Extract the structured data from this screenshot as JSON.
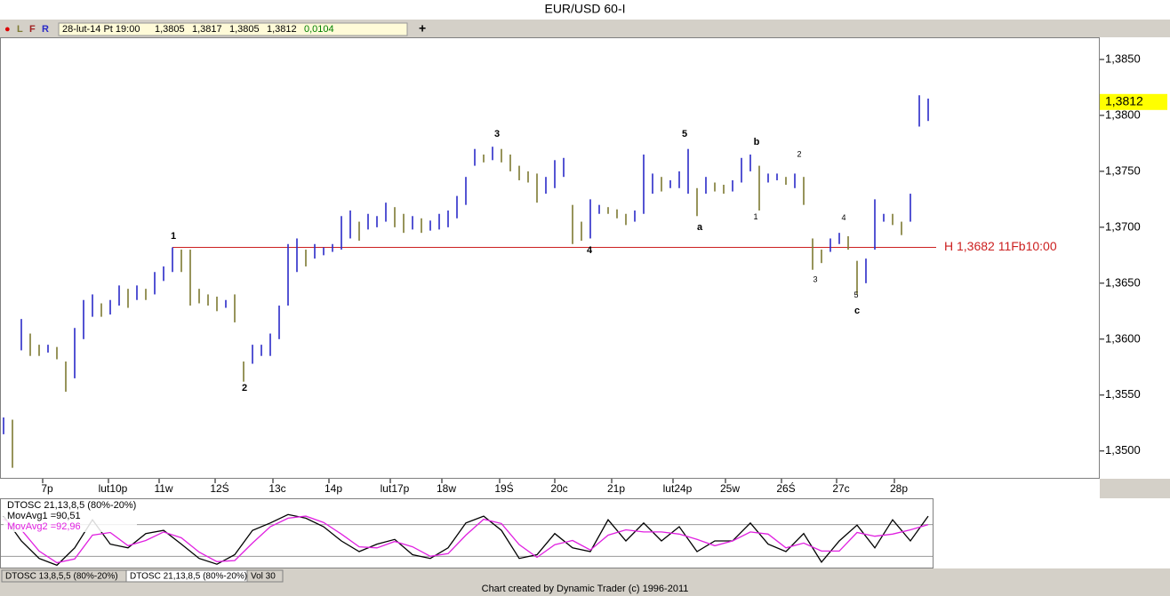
{
  "chart_data": {
    "type": "ohlc",
    "title": "EUR/USD 60-I",
    "toolbar": {
      "markers": [
        "●",
        "L",
        "F",
        "R"
      ],
      "quote": [
        "28-lut-14 Pt 19:00",
        "1,3805",
        "1,3817",
        "1,3805",
        "1,3812",
        "0,0104"
      ]
    },
    "high": [
      1.353,
      1.3528,
      1.3618,
      1.3605,
      1.3595,
      1.3595,
      1.3593,
      1.358,
      1.361,
      1.3635,
      1.364,
      1.3632,
      1.3635,
      1.3648,
      1.3645,
      1.3648,
      1.3645,
      1.366,
      1.3665,
      1.3682,
      1.368,
      1.368,
      1.3645,
      1.364,
      1.3638,
      1.3635,
      1.364,
      1.358,
      1.3595,
      1.3595,
      1.3605,
      1.363,
      1.3685,
      1.369,
      1.368,
      1.3685,
      1.3682,
      1.3685,
      1.371,
      1.3715,
      1.3705,
      1.3712,
      1.371,
      1.3722,
      1.3718,
      1.3712,
      1.371,
      1.3708,
      1.3706,
      1.3712,
      1.3715,
      1.3728,
      1.3745,
      1.377,
      1.3765,
      1.3772,
      1.377,
      1.3765,
      1.3755,
      1.375,
      1.3748,
      1.3745,
      1.376,
      1.3762,
      1.372,
      1.3705,
      1.3725,
      1.372,
      1.3718,
      1.3716,
      1.3712,
      1.3715,
      1.3765,
      1.3748,
      1.3745,
      1.3742,
      1.375,
      1.377,
      1.3735,
      1.3745,
      1.374,
      1.3738,
      1.3742,
      1.3762,
      1.3765,
      1.3755,
      1.3748,
      1.3748,
      1.3745,
      1.3748,
      1.3745,
      1.369,
      1.368,
      1.369,
      1.3695,
      1.3692,
      1.367,
      1.3672,
      1.3725,
      1.3712,
      1.3712,
      1.3705,
      1.373,
      1.3818,
      1.3815
    ],
    "low": [
      1.3515,
      1.3485,
      1.359,
      1.3585,
      1.3585,
      1.3588,
      1.3582,
      1.3553,
      1.3565,
      1.36,
      1.362,
      1.362,
      1.3622,
      1.363,
      1.3628,
      1.3635,
      1.3635,
      1.364,
      1.3652,
      1.366,
      1.366,
      1.363,
      1.3632,
      1.363,
      1.3625,
      1.3628,
      1.3615,
      1.3562,
      1.3578,
      1.3585,
      1.3585,
      1.36,
      1.363,
      1.366,
      1.3665,
      1.3672,
      1.3675,
      1.3678,
      1.368,
      1.369,
      1.3688,
      1.3698,
      1.37,
      1.3705,
      1.37,
      1.3695,
      1.3698,
      1.3695,
      1.3697,
      1.3698,
      1.37,
      1.3708,
      1.372,
      1.3755,
      1.3758,
      1.376,
      1.3758,
      1.375,
      1.3742,
      1.374,
      1.3722,
      1.373,
      1.3735,
      1.3745,
      1.3685,
      1.3688,
      1.369,
      1.3712,
      1.3712,
      1.3708,
      1.3702,
      1.3705,
      1.3712,
      1.373,
      1.3732,
      1.3735,
      1.3735,
      1.373,
      1.371,
      1.373,
      1.3732,
      1.373,
      1.3732,
      1.374,
      1.375,
      1.3715,
      1.374,
      1.3742,
      1.3738,
      1.3735,
      1.372,
      1.3662,
      1.3668,
      1.3678,
      1.3685,
      1.368,
      1.364,
      1.365,
      1.368,
      1.3705,
      1.3702,
      1.3693,
      1.3705,
      1.379,
      1.3795
    ],
    "up_color": "#2a2ac8",
    "down_color": "#7d7a32",
    "xlim": [
      -0.4,
      123.3
    ],
    "xticks": [
      {
        "value": 4.9,
        "label": "7p"
      },
      {
        "value": 12.3,
        "label": "lut10p"
      },
      {
        "value": 18,
        "label": "11w"
      },
      {
        "value": 24.3,
        "label": "12Ś"
      },
      {
        "value": 30.8,
        "label": "13c"
      },
      {
        "value": 37.1,
        "label": "14p"
      },
      {
        "value": 44,
        "label": "lut17p"
      },
      {
        "value": 49.8,
        "label": "18w"
      },
      {
        "value": 56.3,
        "label": "19Ś"
      },
      {
        "value": 62.5,
        "label": "20c"
      },
      {
        "value": 68.9,
        "label": "21p"
      },
      {
        "value": 75.8,
        "label": "lut24p"
      },
      {
        "value": 81.7,
        "label": "25w"
      },
      {
        "value": 88,
        "label": "26Ś"
      },
      {
        "value": 94.2,
        "label": "27c"
      },
      {
        "value": 100.7,
        "label": "28p"
      }
    ],
    "ylim": [
      1.3476,
      1.38698
    ],
    "yticks": [
      {
        "value": 1.385,
        "label": "1,3850"
      },
      {
        "value": 1.38,
        "label": "1,3800"
      },
      {
        "value": 1.375,
        "label": "1,3750"
      },
      {
        "value": 1.37,
        "label": "1,3700"
      },
      {
        "value": 1.365,
        "label": "1,3650"
      },
      {
        "value": 1.36,
        "label": "1,3600"
      },
      {
        "value": 1.355,
        "label": "1,3550"
      },
      {
        "value": 1.35,
        "label": "1,3500"
      }
    ],
    "last_price": {
      "value": 1.3812,
      "label": "1,3812",
      "color": "#ffff00"
    },
    "hline": {
      "value": 1.3682,
      "label": "H 1,3682 11Fb10:00",
      "x_start": 19,
      "color": "#cc2020"
    },
    "annotations": [
      {
        "text": "1",
        "x": 19.1,
        "y": 1.3692,
        "bold": true
      },
      {
        "text": "2",
        "x": 27.1,
        "y": 1.3556,
        "bold": true
      },
      {
        "text": "3",
        "x": 55.5,
        "y": 1.3783,
        "bold": true
      },
      {
        "text": "4",
        "x": 65.9,
        "y": 1.3679,
        "bold": true
      },
      {
        "text": "5",
        "x": 76.6,
        "y": 1.3783,
        "bold": true
      },
      {
        "text": "a",
        "x": 78.3,
        "y": 1.37,
        "bold": true
      },
      {
        "text": "b",
        "x": 84.7,
        "y": 1.3776,
        "bold": true
      },
      {
        "text": "1",
        "x": 84.6,
        "y": 1.3709,
        "bold": false
      },
      {
        "text": "2",
        "x": 89.5,
        "y": 1.3765,
        "bold": false
      },
      {
        "text": "3",
        "x": 91.3,
        "y": 1.3653,
        "bold": false
      },
      {
        "text": "4",
        "x": 94.5,
        "y": 1.3708,
        "bold": false
      },
      {
        "text": "5",
        "x": 95.9,
        "y": 1.3639,
        "bold": false
      },
      {
        "text": "c",
        "x": 96,
        "y": 1.3625,
        "bold": true
      }
    ],
    "oscillator": {
      "type": "line",
      "label": "DTOSC 21,13,8,5 (80%-20%)",
      "ylim": [
        -1.3,
        128
      ],
      "levels": [
        80,
        20
      ],
      "x": [
        0,
        2,
        4,
        6,
        8,
        10,
        12,
        14,
        16,
        18,
        20,
        22,
        24,
        26,
        28,
        30,
        32,
        34,
        36,
        38,
        40,
        42,
        44,
        46,
        48,
        50,
        52,
        54,
        56,
        58,
        60,
        62,
        64,
        66,
        68,
        70,
        72,
        74,
        76,
        78,
        80,
        82,
        84,
        86,
        88,
        90,
        92,
        94,
        96,
        98,
        100,
        102,
        104
      ],
      "series": [
        {
          "name": "MovAvg1 =90,51",
          "color": "#000000",
          "values": [
            96,
            49,
            16,
            3,
            36,
            89,
            43,
            36,
            63,
            69,
            43,
            16,
            5,
            23,
            69,
            83,
            99,
            92,
            76,
            49,
            29,
            43,
            52,
            23,
            16,
            36,
            83,
            96,
            69,
            16,
            23,
            63,
            36,
            29,
            89,
            49,
            83,
            49,
            76,
            29,
            49,
            49,
            83,
            43,
            29,
            63,
            9,
            49,
            79,
            36,
            89,
            49,
            96
          ]
        },
        {
          "name": "MovAvg2 =92,96",
          "color": "#e020e0",
          "values": [
            90,
            70,
            30,
            8,
            15,
            60,
            65,
            40,
            50,
            66,
            55,
            28,
            10,
            12,
            45,
            76,
            92,
            96,
            84,
            62,
            38,
            36,
            48,
            38,
            20,
            25,
            60,
            90,
            82,
            42,
            18,
            42,
            50,
            32,
            60,
            70,
            66,
            66,
            62,
            52,
            40,
            49,
            66,
            62,
            36,
            45,
            30,
            30,
            65,
            58,
            62,
            70,
            80
          ]
        }
      ]
    },
    "tabs": [
      "DTOSC 13,8,5,5 (80%-20%)",
      "DTOSC 21,13,8,5 (80%-20%)",
      "Vol 30"
    ],
    "footer": "Chart created by Dynamic Trader  (c) 1996-2011"
  }
}
